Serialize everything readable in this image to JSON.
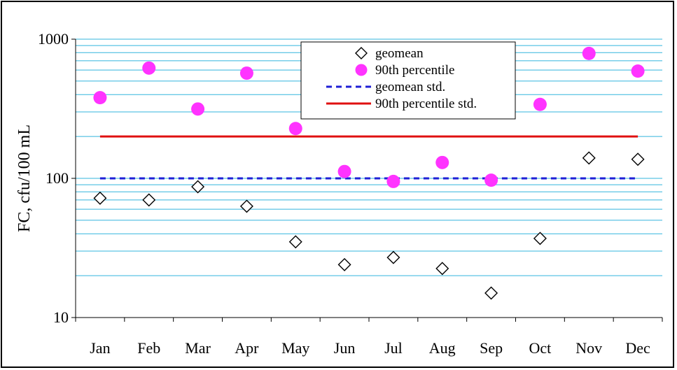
{
  "chart_data": {
    "type": "scatter",
    "categories": [
      "Jan",
      "Feb",
      "Mar",
      "Apr",
      "May",
      "Jun",
      "Jul",
      "Aug",
      "Sep",
      "Oct",
      "Nov",
      "Dec"
    ],
    "ylabel": "FC, cfu/100 mL",
    "yscale": "log",
    "ylim": [
      10,
      1000
    ],
    "y_tick_labels": [
      "1000",
      "100",
      "10"
    ],
    "y_tick_values": [
      1000,
      100,
      10
    ],
    "grid": true,
    "legend_position": "top-center",
    "series": [
      {
        "name": "geomean",
        "kind": "marker",
        "marker": "diamond",
        "color": "#000000",
        "values": [
          72,
          70,
          87,
          63,
          35,
          24,
          27,
          22.5,
          15,
          37,
          140,
          137
        ]
      },
      {
        "name": "90th percentile",
        "kind": "marker",
        "marker": "circle",
        "color": "#ff33ff",
        "values": [
          380,
          620,
          315,
          570,
          228,
          112,
          95,
          130,
          97,
          340,
          790,
          590
        ]
      },
      {
        "name": "geomean std.",
        "kind": "line",
        "style": "dashed",
        "color": "#1f1fd6",
        "values": [
          100,
          100,
          100,
          100,
          100,
          100,
          100,
          100,
          100,
          100,
          100,
          100
        ]
      },
      {
        "name": "90th percentile std.",
        "kind": "line",
        "style": "solid",
        "color": "#e01010",
        "values": [
          200,
          200,
          200,
          200,
          200,
          200,
          200,
          200,
          200,
          200,
          200,
          200
        ]
      }
    ],
    "colors": {
      "grid": "#33b5dd",
      "axis": "#000000"
    }
  }
}
